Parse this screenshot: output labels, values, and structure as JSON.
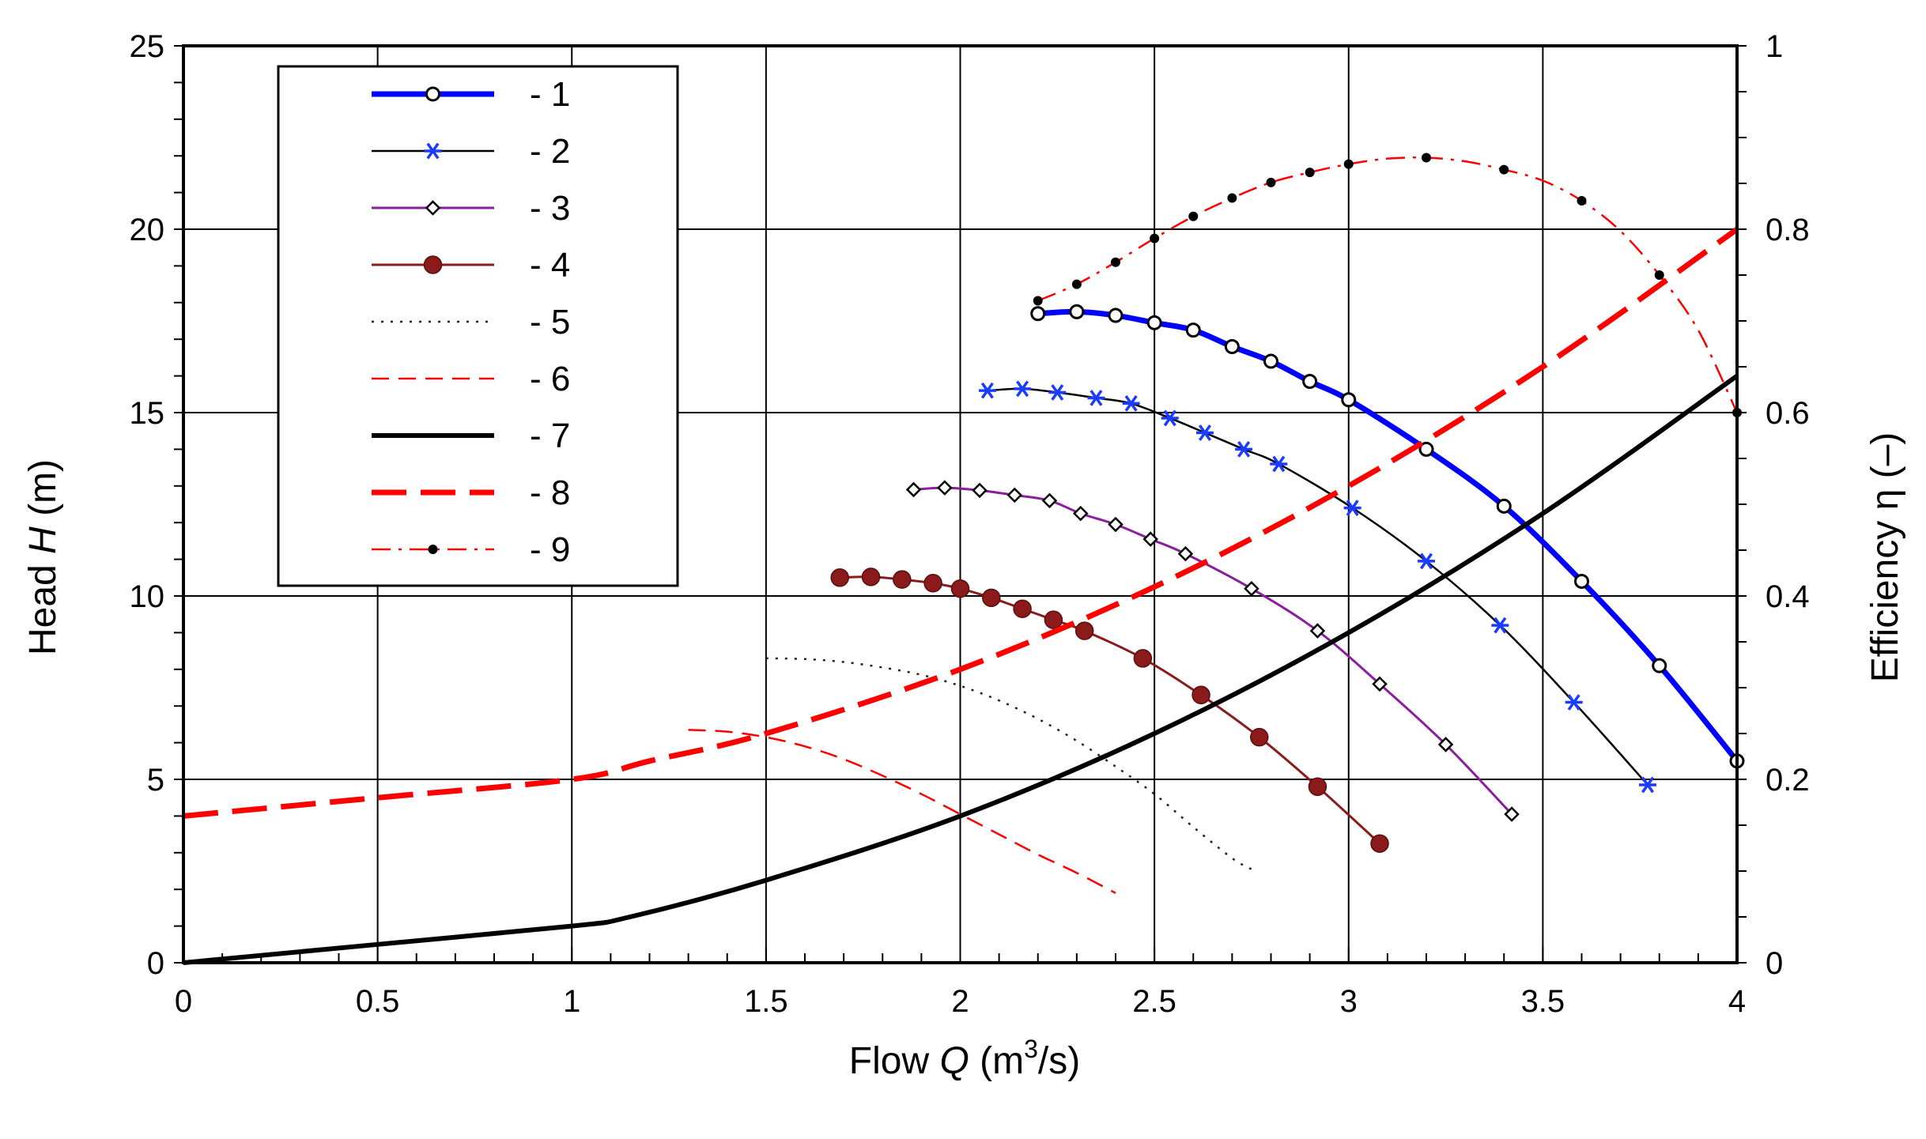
{
  "chart_data": {
    "type": "line",
    "xlabel_prefix": "Flow ",
    "xlabel_var": "Q",
    "xlabel_unit_pre": " (m",
    "xlabel_unit_sup": "3",
    "xlabel_unit_post": "/s)",
    "ylabel_prefix": "Head ",
    "ylabel_var": "H",
    "ylabel_unit": " (m)",
    "y2label": "Efficiency η (–)",
    "xlim": [
      0,
      4
    ],
    "ylim": [
      0,
      25
    ],
    "y2lim": [
      0,
      1
    ],
    "xticks": [
      "0",
      "0.5",
      "1",
      "1.5",
      "2",
      "2.5",
      "3",
      "3.5",
      "4"
    ],
    "xtick_values": [
      0,
      0.5,
      1,
      1.5,
      2,
      2.5,
      3,
      3.5,
      4
    ],
    "yticks": [
      "0",
      "5",
      "10",
      "15",
      "20",
      "25"
    ],
    "ytick_values": [
      0,
      5,
      10,
      15,
      20,
      25
    ],
    "y2ticks": [
      "0",
      "0.2",
      "0.4",
      "0.6",
      "0.8",
      "1"
    ],
    "y2tick_values": [
      0,
      0.2,
      0.4,
      0.6,
      0.8,
      1
    ],
    "grid": true,
    "legend_position": "top-left",
    "series": [
      {
        "name": "- 1",
        "axis": "left",
        "color": "#0000ff",
        "width": 7,
        "dash": "",
        "marker": "open-circle",
        "marker_every": 1,
        "x": [
          2.2,
          2.3,
          2.4,
          2.5,
          2.6,
          2.7,
          2.8,
          2.9,
          3.0,
          3.2,
          3.4,
          3.6,
          3.8,
          4.0
        ],
        "y": [
          17.7,
          17.75,
          17.65,
          17.45,
          17.25,
          16.8,
          16.4,
          15.85,
          15.35,
          14.0,
          12.45,
          10.4,
          8.1,
          5.5
        ]
      },
      {
        "name": "- 2",
        "axis": "left",
        "color": "#000000",
        "width": 2.5,
        "dash": "",
        "marker": "blue-asterisk",
        "marker_every": 1,
        "x": [
          2.07,
          2.16,
          2.25,
          2.35,
          2.44,
          2.54,
          2.63,
          2.73,
          2.82,
          3.01,
          3.2,
          3.39,
          3.58,
          3.77
        ],
        "y": [
          15.6,
          15.65,
          15.55,
          15.4,
          15.25,
          14.85,
          14.45,
          14.0,
          13.6,
          12.4,
          10.95,
          9.2,
          7.1,
          4.85
        ]
      },
      {
        "name": "- 3",
        "axis": "left",
        "color": "#8b1e9e",
        "width": 3,
        "dash": "",
        "marker": "open-diamond",
        "marker_every": 1,
        "x": [
          1.88,
          1.96,
          2.05,
          2.14,
          2.23,
          2.31,
          2.4,
          2.49,
          2.58,
          2.75,
          2.92,
          3.08,
          3.25,
          3.42
        ],
        "y": [
          12.9,
          12.95,
          12.88,
          12.75,
          12.6,
          12.25,
          11.95,
          11.55,
          11.15,
          10.2,
          9.05,
          7.6,
          5.95,
          4.05
        ]
      },
      {
        "name": "- 4",
        "axis": "left",
        "color": "#8b1a1a",
        "width": 3,
        "dash": "",
        "marker": "filled-circle",
        "marker_every": 1,
        "x": [
          1.69,
          1.77,
          1.85,
          1.93,
          2.0,
          2.08,
          2.16,
          2.24,
          2.32,
          2.47,
          2.62,
          2.77,
          2.92,
          3.08
        ],
        "y": [
          10.5,
          10.52,
          10.45,
          10.35,
          10.2,
          9.95,
          9.65,
          9.35,
          9.05,
          8.3,
          7.3,
          6.15,
          4.8,
          3.25
        ]
      },
      {
        "name": "- 5",
        "axis": "left",
        "color": "#222222",
        "width": 2.5,
        "dash": "3,9",
        "marker": "none",
        "marker_every": 1,
        "x": [
          1.5,
          1.6,
          1.7,
          1.8,
          1.9,
          2.0,
          2.1,
          2.2,
          2.3,
          2.4,
          2.5,
          2.6,
          2.7,
          2.75
        ],
        "y": [
          8.3,
          8.28,
          8.2,
          8.05,
          7.85,
          7.55,
          7.15,
          6.65,
          6.05,
          5.35,
          4.6,
          3.7,
          2.85,
          2.55
        ]
      },
      {
        "name": "- 6",
        "axis": "left",
        "color": "#ff0000",
        "width": 2.5,
        "dash": "22,12",
        "marker": "none",
        "marker_every": 1,
        "x": [
          1.3,
          1.4,
          1.5,
          1.6,
          1.7,
          1.8,
          1.9,
          2.0,
          2.1,
          2.2,
          2.3,
          2.4
        ],
        "y": [
          6.35,
          6.3,
          6.15,
          5.9,
          5.55,
          5.1,
          4.6,
          4.05,
          3.5,
          2.95,
          2.45,
          1.9
        ]
      },
      {
        "name": "- 7",
        "axis": "left",
        "color": "#000000",
        "width": 6,
        "dash": "",
        "marker": "none",
        "marker_every": 1,
        "x": [
          0,
          0.5,
          1.0,
          1.15,
          1.5,
          2.0,
          2.5,
          3.0,
          3.5,
          4.0
        ],
        "y": [
          0,
          0.5,
          1.0,
          1.25,
          2.25,
          4.0,
          6.25,
          9.0,
          12.25,
          16.0
        ]
      },
      {
        "name": "- 8",
        "axis": "left",
        "color": "#ff0000",
        "width": 7,
        "dash": "44,18",
        "marker": "none",
        "marker_every": 1,
        "x": [
          0,
          0.5,
          1.0,
          1.2,
          1.5,
          2.0,
          2.5,
          3.0,
          3.5,
          4.0
        ],
        "y": [
          4.0,
          4.5,
          5.0,
          5.5,
          6.25,
          8.0,
          10.25,
          13.0,
          16.25,
          20.0
        ]
      },
      {
        "name": "- 9",
        "axis": "right",
        "color": "#ff0000",
        "width": 2.5,
        "dash": "24,10,4,10",
        "marker": "black-dot",
        "marker_every": 1,
        "x": [
          2.2,
          2.3,
          2.4,
          2.5,
          2.6,
          2.7,
          2.8,
          2.9,
          3.0,
          3.2,
          3.4,
          3.6,
          3.8,
          4.0
        ],
        "y": [
          0.722,
          0.74,
          0.764,
          0.79,
          0.814,
          0.834,
          0.851,
          0.862,
          0.871,
          0.878,
          0.865,
          0.831,
          0.75,
          0.6
        ],
        "plot_x": [
          2.2,
          2.3,
          2.4,
          2.5,
          2.6,
          2.7,
          2.8,
          2.9,
          3.0,
          3.1,
          3.2,
          3.3,
          3.4,
          3.5,
          3.6,
          3.7,
          3.8,
          3.9,
          4.0
        ],
        "plot_y": [
          0.722,
          0.74,
          0.764,
          0.79,
          0.814,
          0.834,
          0.851,
          0.862,
          0.871,
          0.877,
          0.878,
          0.874,
          0.865,
          0.853,
          0.831,
          0.798,
          0.75,
          0.69,
          0.6
        ]
      }
    ]
  }
}
